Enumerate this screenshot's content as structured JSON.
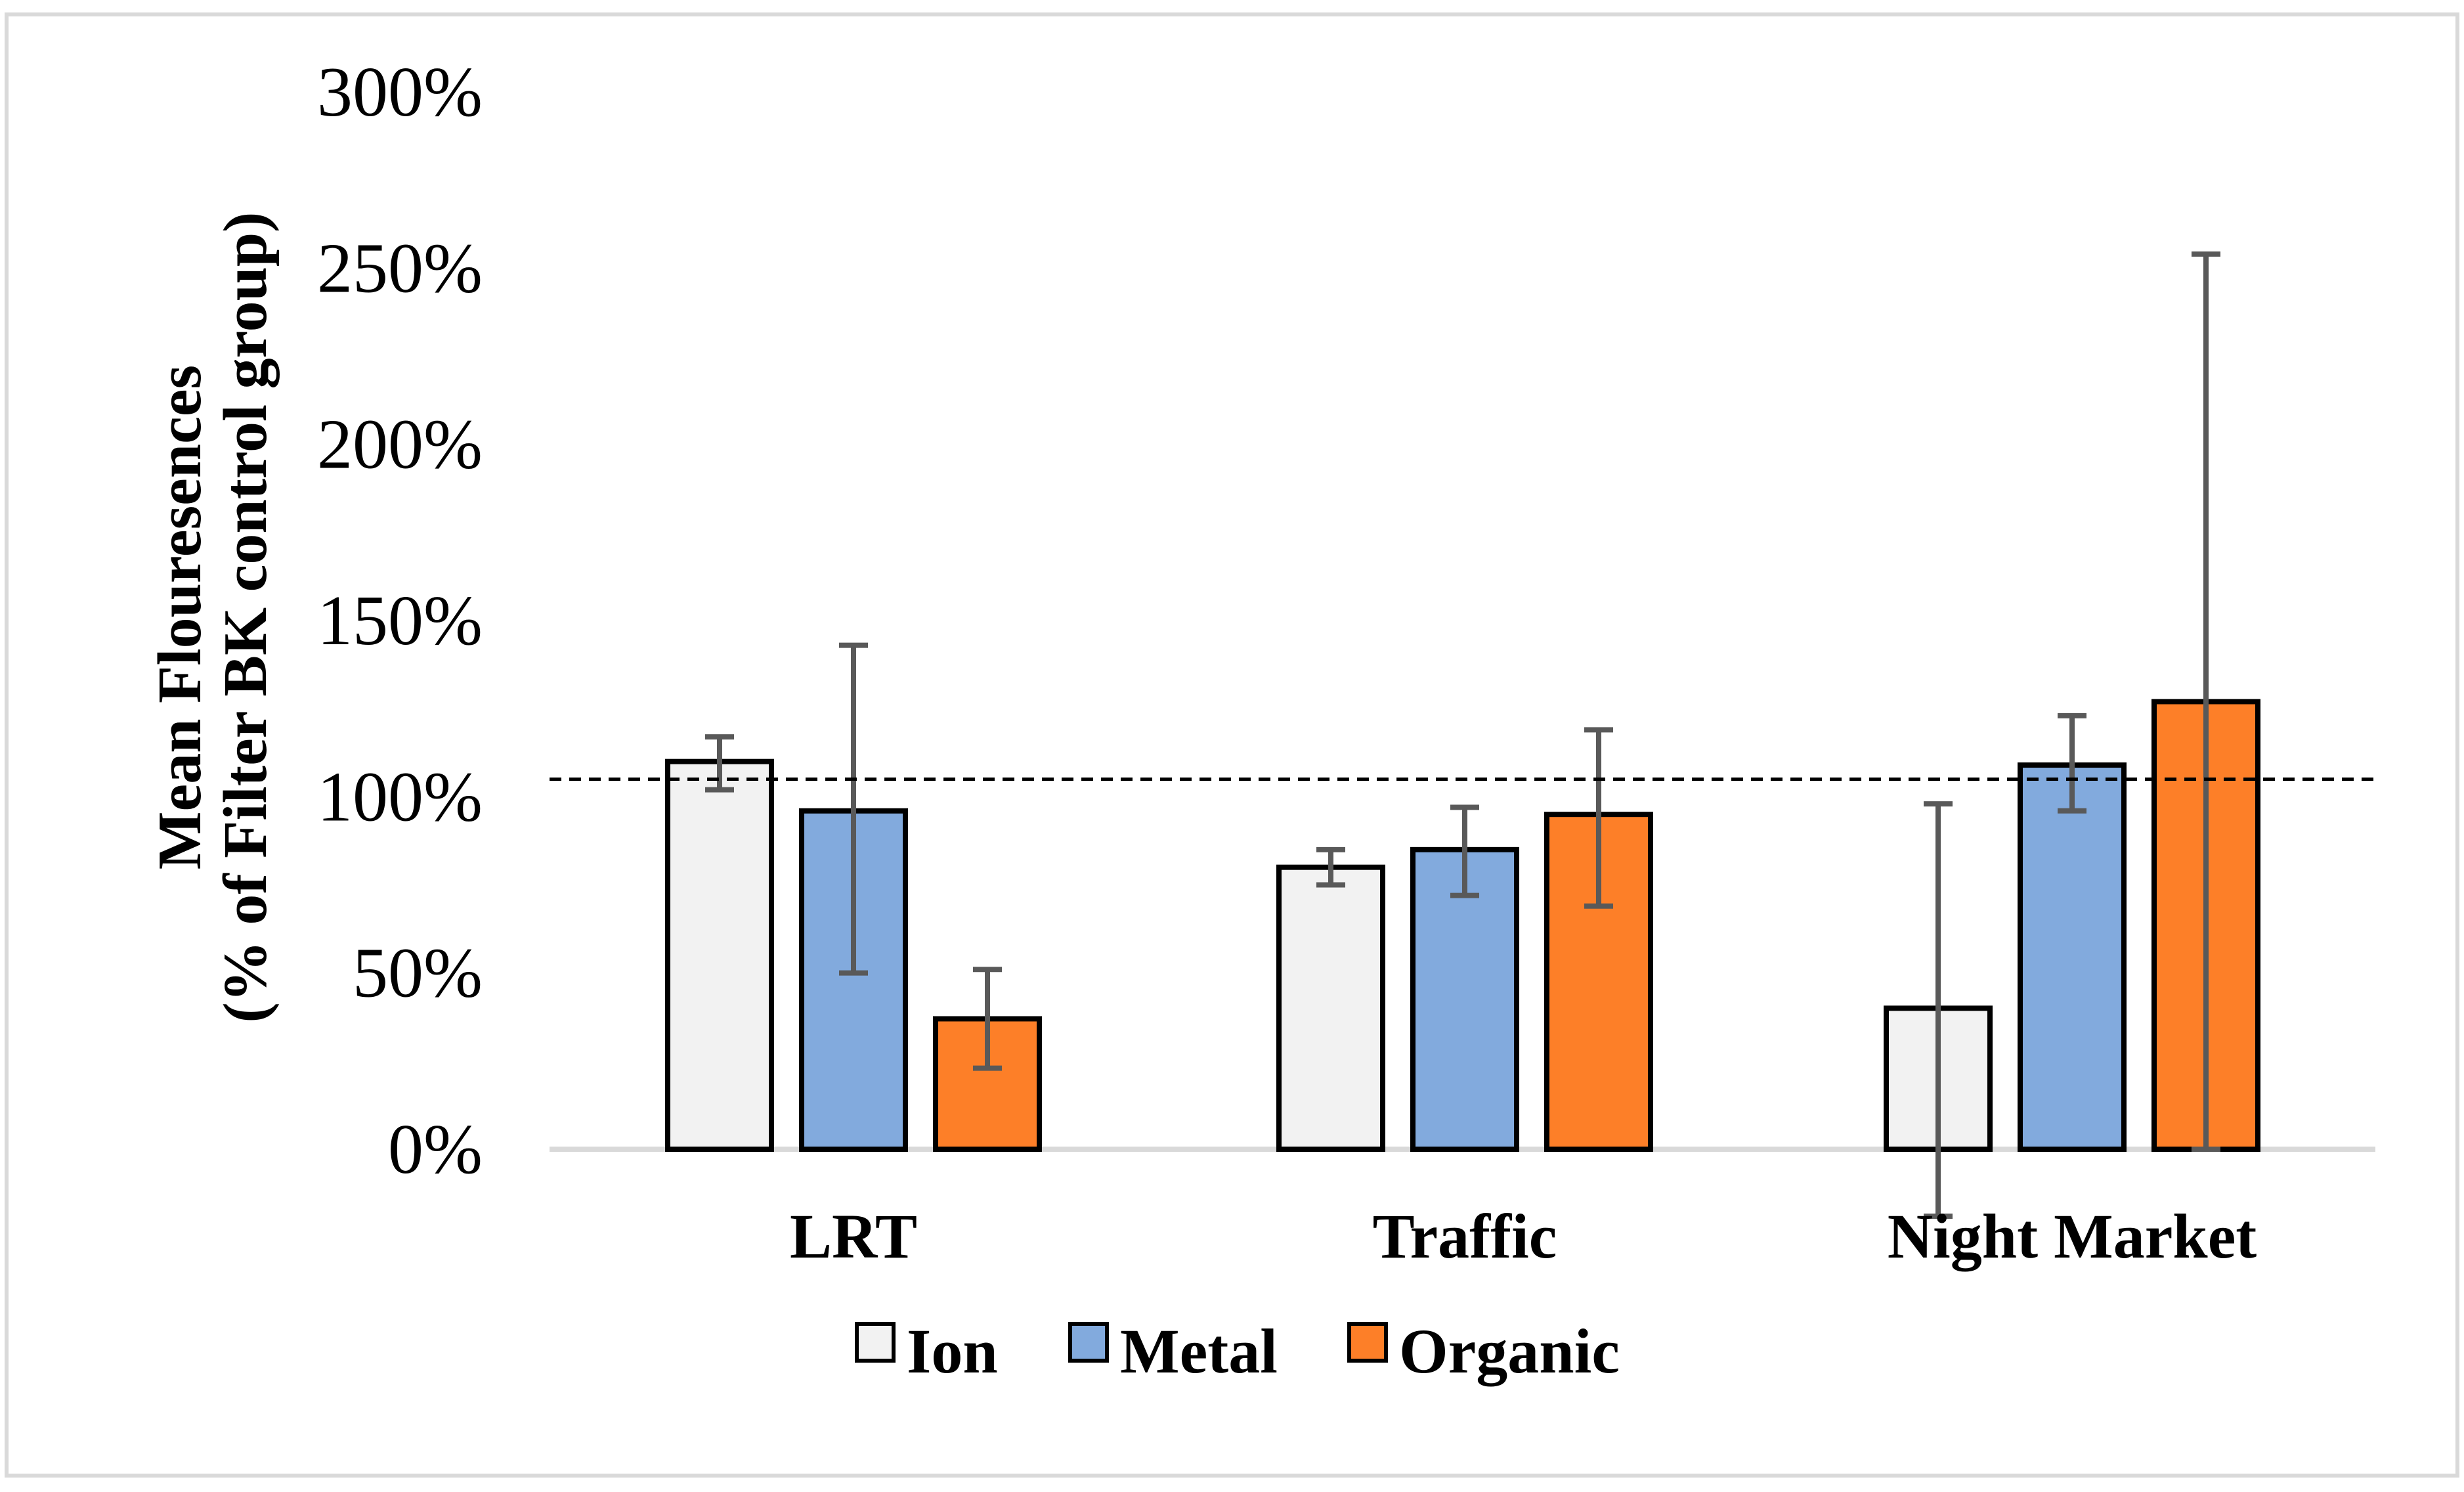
{
  "chart_data": {
    "type": "bar",
    "title": "",
    "xlabel": "",
    "ylabel_line1": "Mean Flouresences",
    "ylabel_line2": "(% of Filter BK control group)",
    "categories": [
      "LRT",
      "Traffic",
      "Night Market"
    ],
    "series": [
      {
        "name": "Ion",
        "color": "#f2f2f2",
        "values": [
          110,
          80,
          40
        ],
        "error_low": [
          102,
          75,
          -19
        ],
        "error_high": [
          117,
          85,
          98
        ]
      },
      {
        "name": "Metal",
        "color": "#82aadd",
        "values": [
          96,
          85,
          109
        ],
        "error_low": [
          50,
          72,
          96
        ],
        "error_high": [
          143,
          97,
          123
        ]
      },
      {
        "name": "Organic",
        "color": "#fd7f28",
        "values": [
          37,
          95,
          127
        ],
        "error_low": [
          23,
          69,
          0
        ],
        "error_high": [
          51,
          119,
          254
        ]
      }
    ],
    "ylim": [
      0,
      300
    ],
    "yticks": [
      0,
      50,
      100,
      150,
      200,
      250,
      300
    ],
    "ytick_labels": [
      "0%",
      "50%",
      "100%",
      "150%",
      "200%",
      "250%",
      "300%"
    ],
    "reference_line": 105,
    "legend": "bottom",
    "grid": false
  }
}
